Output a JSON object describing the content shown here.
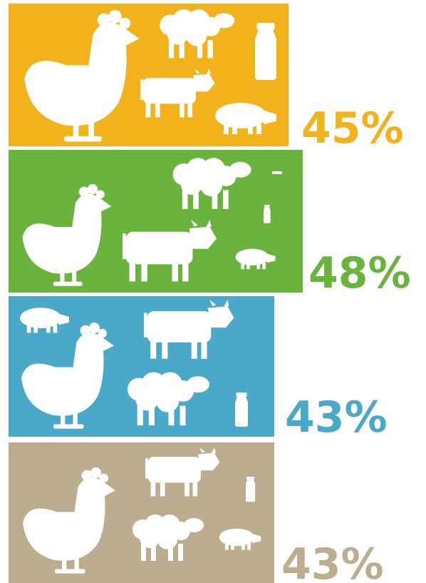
{
  "panels": [
    {
      "label": "45%"
    },
    {
      "label": "48%"
    },
    {
      "label": "43%"
    },
    {
      "label": "43%"
    }
  ]
}
